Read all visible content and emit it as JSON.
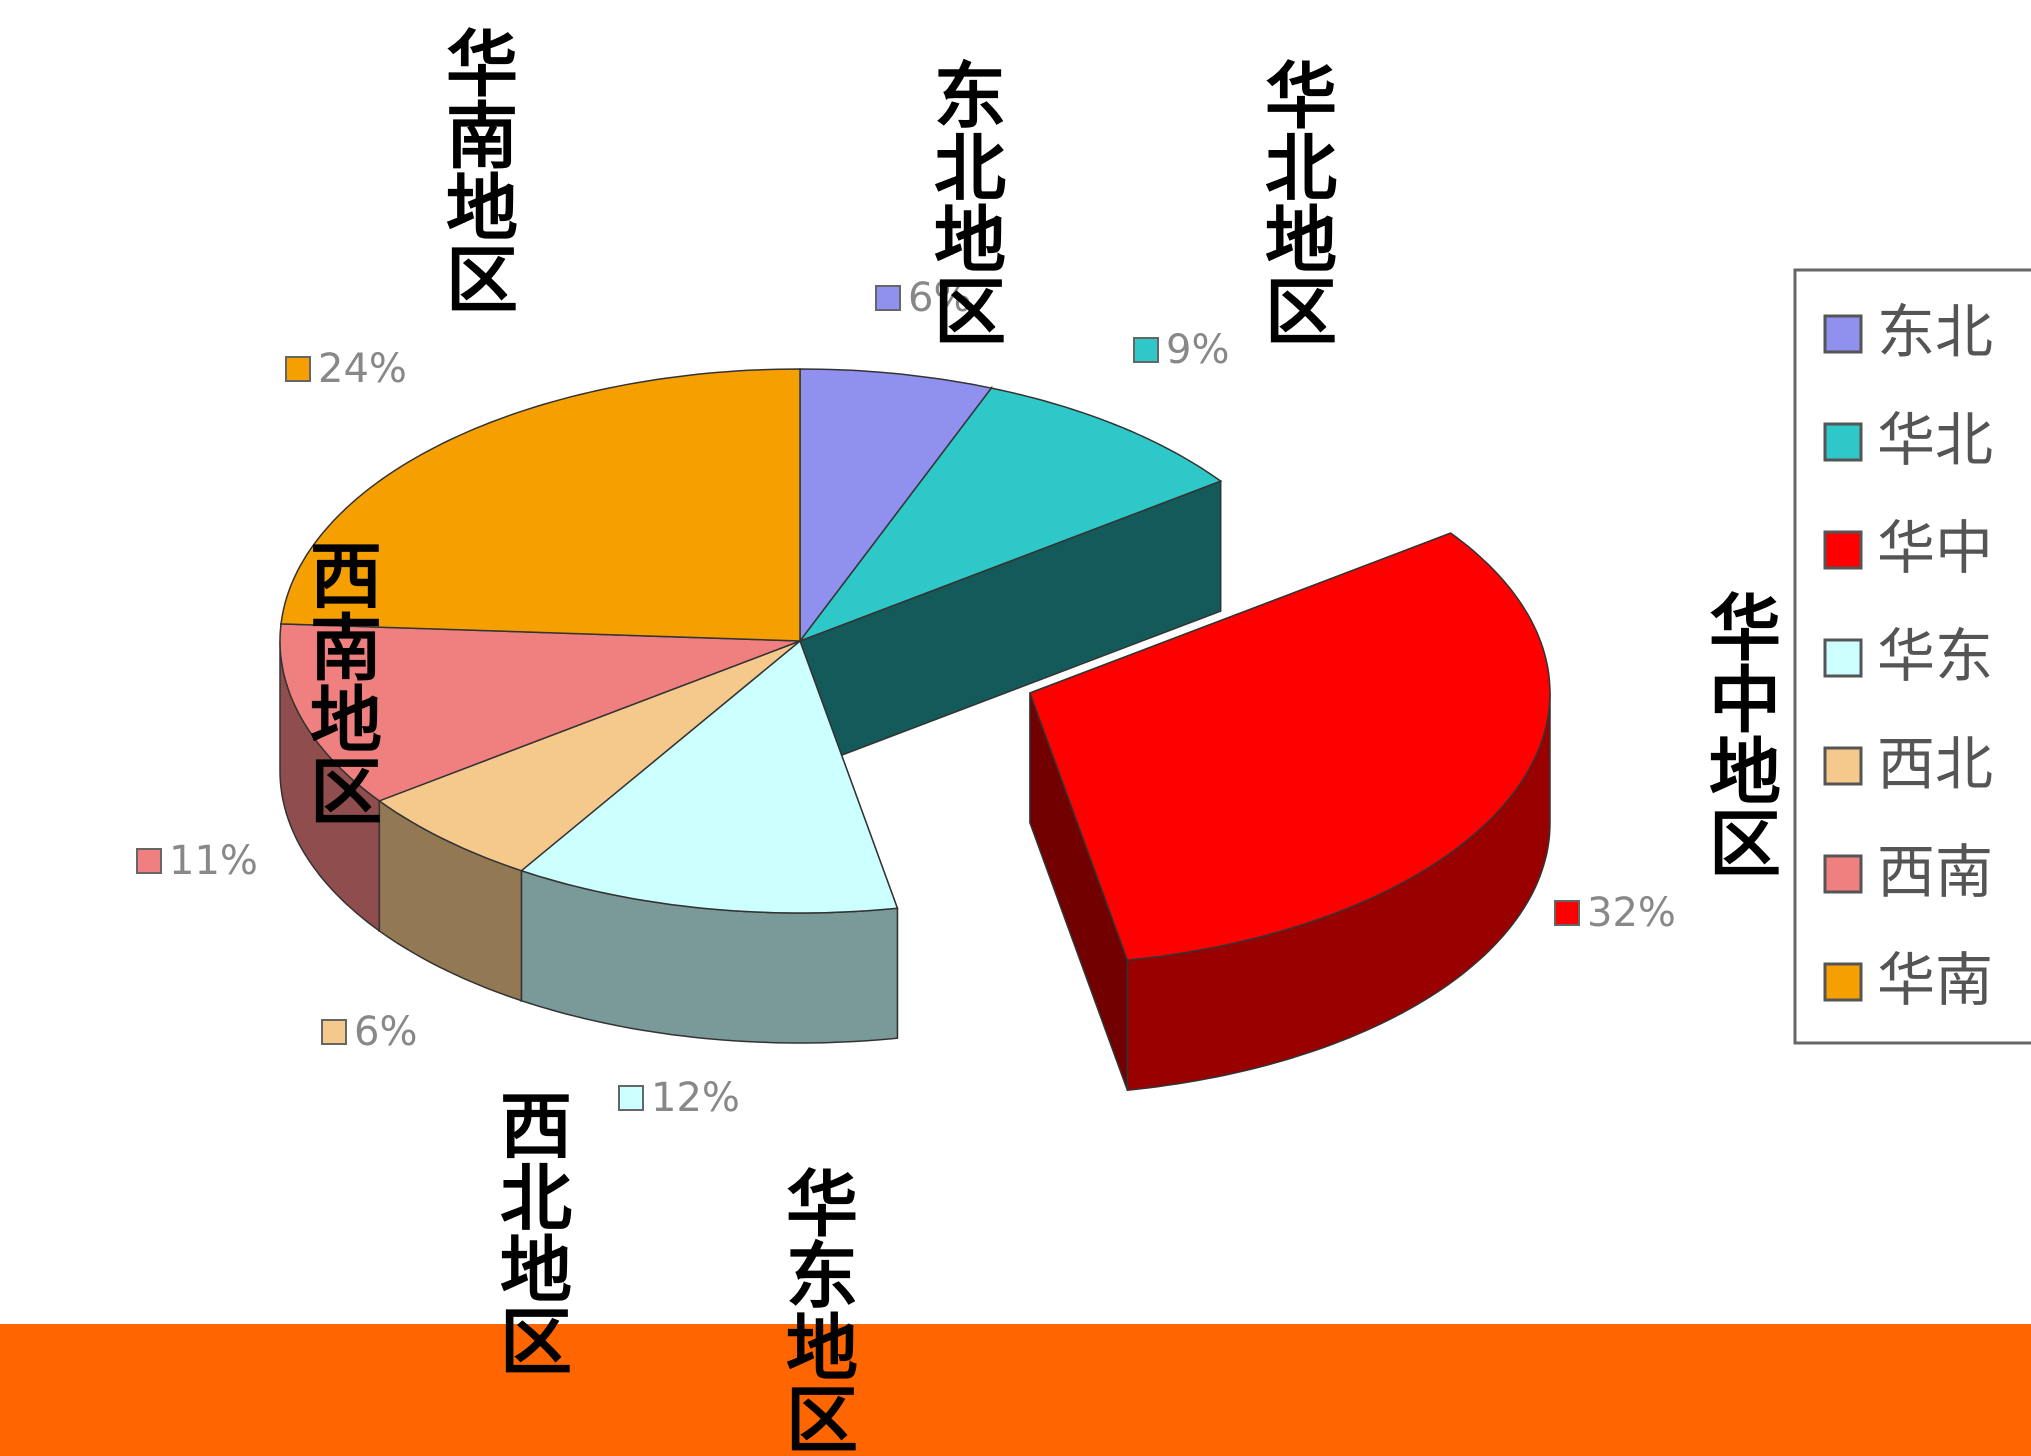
{
  "chart_data": {
    "type": "pie3d",
    "categories": [
      "东北",
      "华北",
      "华中",
      "华东",
      "西北",
      "西南",
      "华南"
    ],
    "values": [
      6,
      9,
      32,
      12,
      6,
      11,
      24
    ],
    "value_labels": [
      "6%",
      "9%",
      "32%",
      "12%",
      "6%",
      "11%",
      "24%"
    ],
    "colors": [
      "#9090ee",
      "#2ec8c8",
      "#ff0000",
      "#ccffff",
      "#f5c88c",
      "#f08080",
      "#f5a000"
    ],
    "exploded": "华中",
    "legend": "right",
    "annotations": [
      "华南地区",
      "东北地区",
      "华北地区",
      "华中地区",
      "西南地区",
      "西北地区",
      "华东地区"
    ]
  }
}
